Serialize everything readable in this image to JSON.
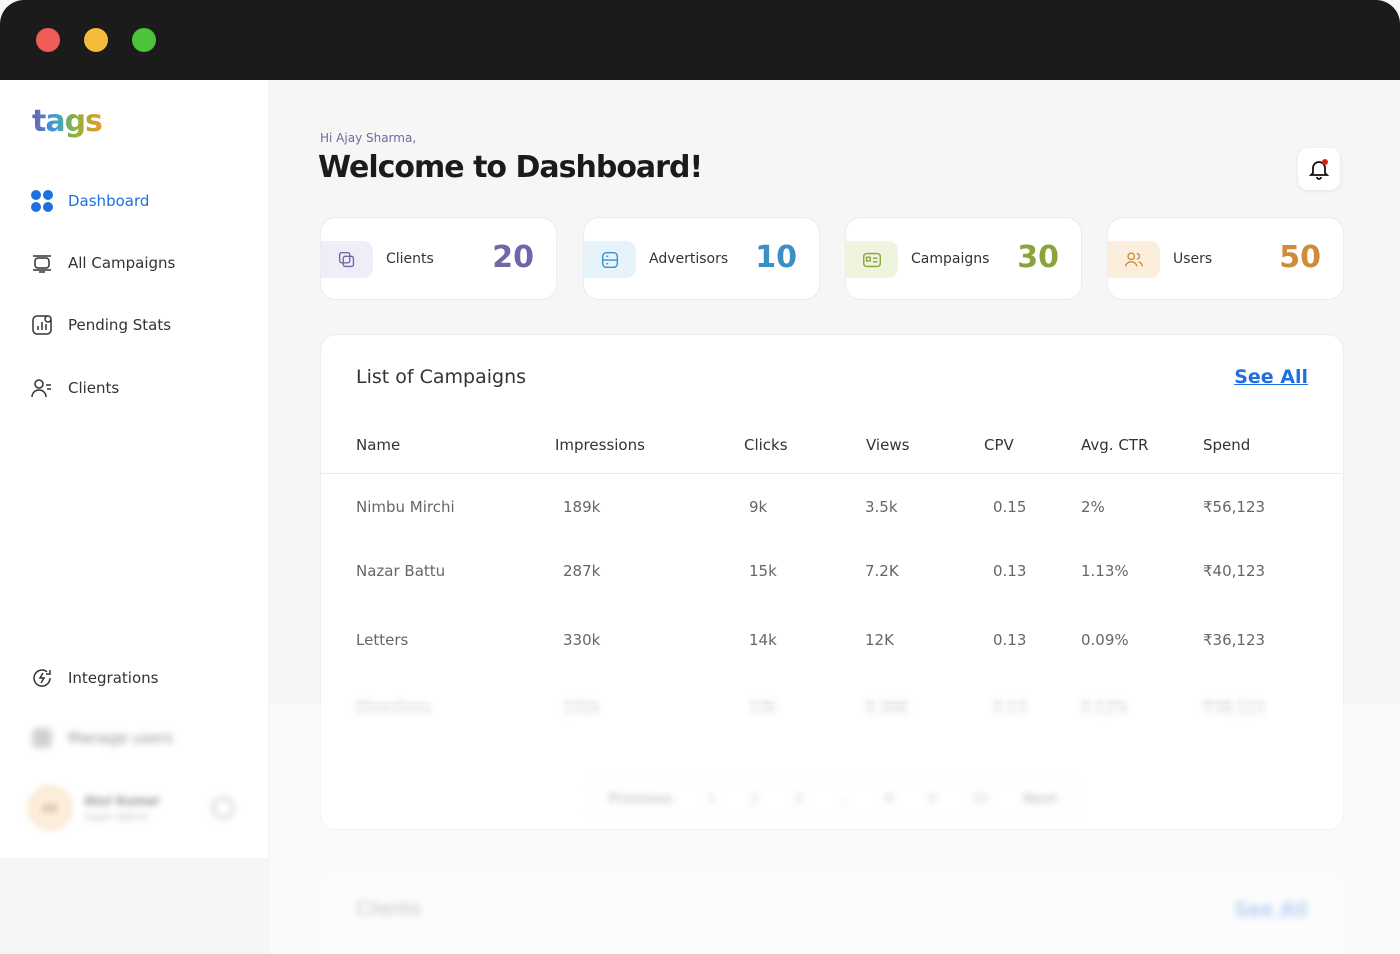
{
  "sidebar": {
    "logo": "tags",
    "nav": [
      "Dashboard",
      "All Campaigns",
      "Pending Stats",
      "Clients"
    ],
    "bottom_nav": [
      "Integrations",
      "Manage users"
    ],
    "user": {
      "initials": "AK",
      "name": "Atul Kumar",
      "role": "Super Admin"
    }
  },
  "header": {
    "greeting": "Hi Ajay Sharma,",
    "title": "Welcome to Dashboard!"
  },
  "stats": [
    {
      "label": "Clients",
      "value": "20"
    },
    {
      "label": "Advertisors",
      "value": "10"
    },
    {
      "label": "Campaigns",
      "value": "30"
    },
    {
      "label": "Users",
      "value": "50"
    }
  ],
  "campaigns": {
    "title": "List of Campaigns",
    "see_all": "See All",
    "columns": [
      "Name",
      "Impressions",
      "Clicks",
      "Views",
      "CPV",
      "Avg. CTR",
      "Spend"
    ],
    "rows": [
      [
        "Nimbu Mirchi",
        "189k",
        "9k",
        "3.5k",
        "0.15",
        "2%",
        "₹56,123"
      ],
      [
        "Nazar Battu",
        "287k",
        "15k",
        "7.2K",
        "0.13",
        "1.13%",
        "₹40,123"
      ],
      [
        "Letters",
        "330k",
        "14k",
        "12K",
        "0.13",
        "0.09%",
        "₹36,123"
      ],
      [
        "Directions",
        "231k",
        "13k",
        "9.36K",
        "0.13",
        "0.12%",
        "₹38,123"
      ]
    ]
  },
  "pagination": {
    "previous": "Previous",
    "pages": [
      "1",
      "2",
      "3",
      "...",
      "8",
      "9",
      "10"
    ],
    "next": "Next"
  },
  "clients_section": {
    "title": "Clients",
    "see_all": "See All"
  }
}
